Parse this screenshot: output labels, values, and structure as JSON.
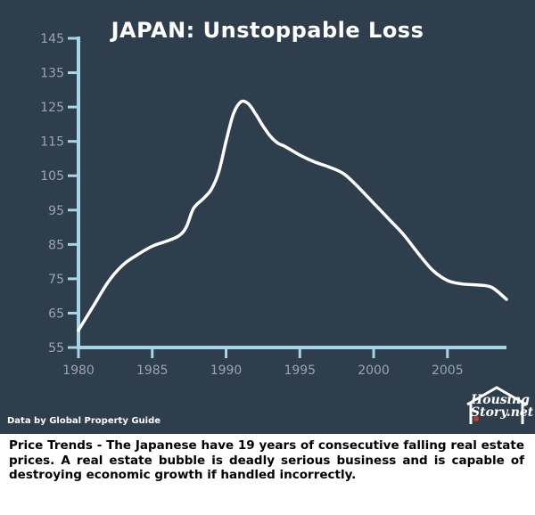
{
  "title": "JAPAN: Unstoppable Loss",
  "source_note": "Data by Global Property Guide",
  "logo": {
    "line1": "Housing",
    "line2": "Story.net"
  },
  "caption": "Price Trends - The Japanese have 19 years of consecutive falling real estate prices. A real estate bubble is deadly serious business and is capable of destroying economic growth if handled incorrectly.",
  "colors": {
    "background": "#2e3e4c",
    "axis": "#a8d4e8",
    "line": "#ffffff",
    "tick_text": "#9aa5b0"
  },
  "chart_data": {
    "type": "line",
    "title": "JAPAN: Unstoppable Loss",
    "xlabel": "",
    "ylabel": "",
    "xlim": [
      1980,
      2009
    ],
    "ylim": [
      55,
      145
    ],
    "x_ticks": [
      1980,
      1985,
      1990,
      1995,
      2000,
      2005
    ],
    "y_ticks": [
      55,
      65,
      75,
      85,
      95,
      105,
      115,
      125,
      135,
      145
    ],
    "grid": false,
    "series": [
      {
        "x": [
          1980,
          1981,
          1982,
          1983,
          1984,
          1985,
          1986,
          1986.8,
          1987.3,
          1987.8,
          1988.5,
          1989,
          1989.5,
          1990,
          1990.5,
          1991,
          1991.5,
          1992,
          1992.5,
          1993,
          1993.5,
          1994,
          1995,
          1996,
          1997,
          1998,
          1999,
          2000,
          2001,
          2002,
          2003,
          2004,
          2005,
          2006,
          2007,
          2008,
          2009
        ],
        "y": [
          60,
          67,
          74,
          79,
          82,
          84.5,
          86,
          87.5,
          90,
          95.5,
          98.5,
          101,
          106,
          115,
          123,
          126.5,
          126,
          123,
          119.5,
          116.5,
          114.5,
          113.5,
          111,
          109,
          107.5,
          105.5,
          101.5,
          97,
          92.5,
          88,
          82.5,
          77.5,
          74.5,
          73.5,
          73.2,
          72.5,
          69
        ]
      }
    ]
  }
}
